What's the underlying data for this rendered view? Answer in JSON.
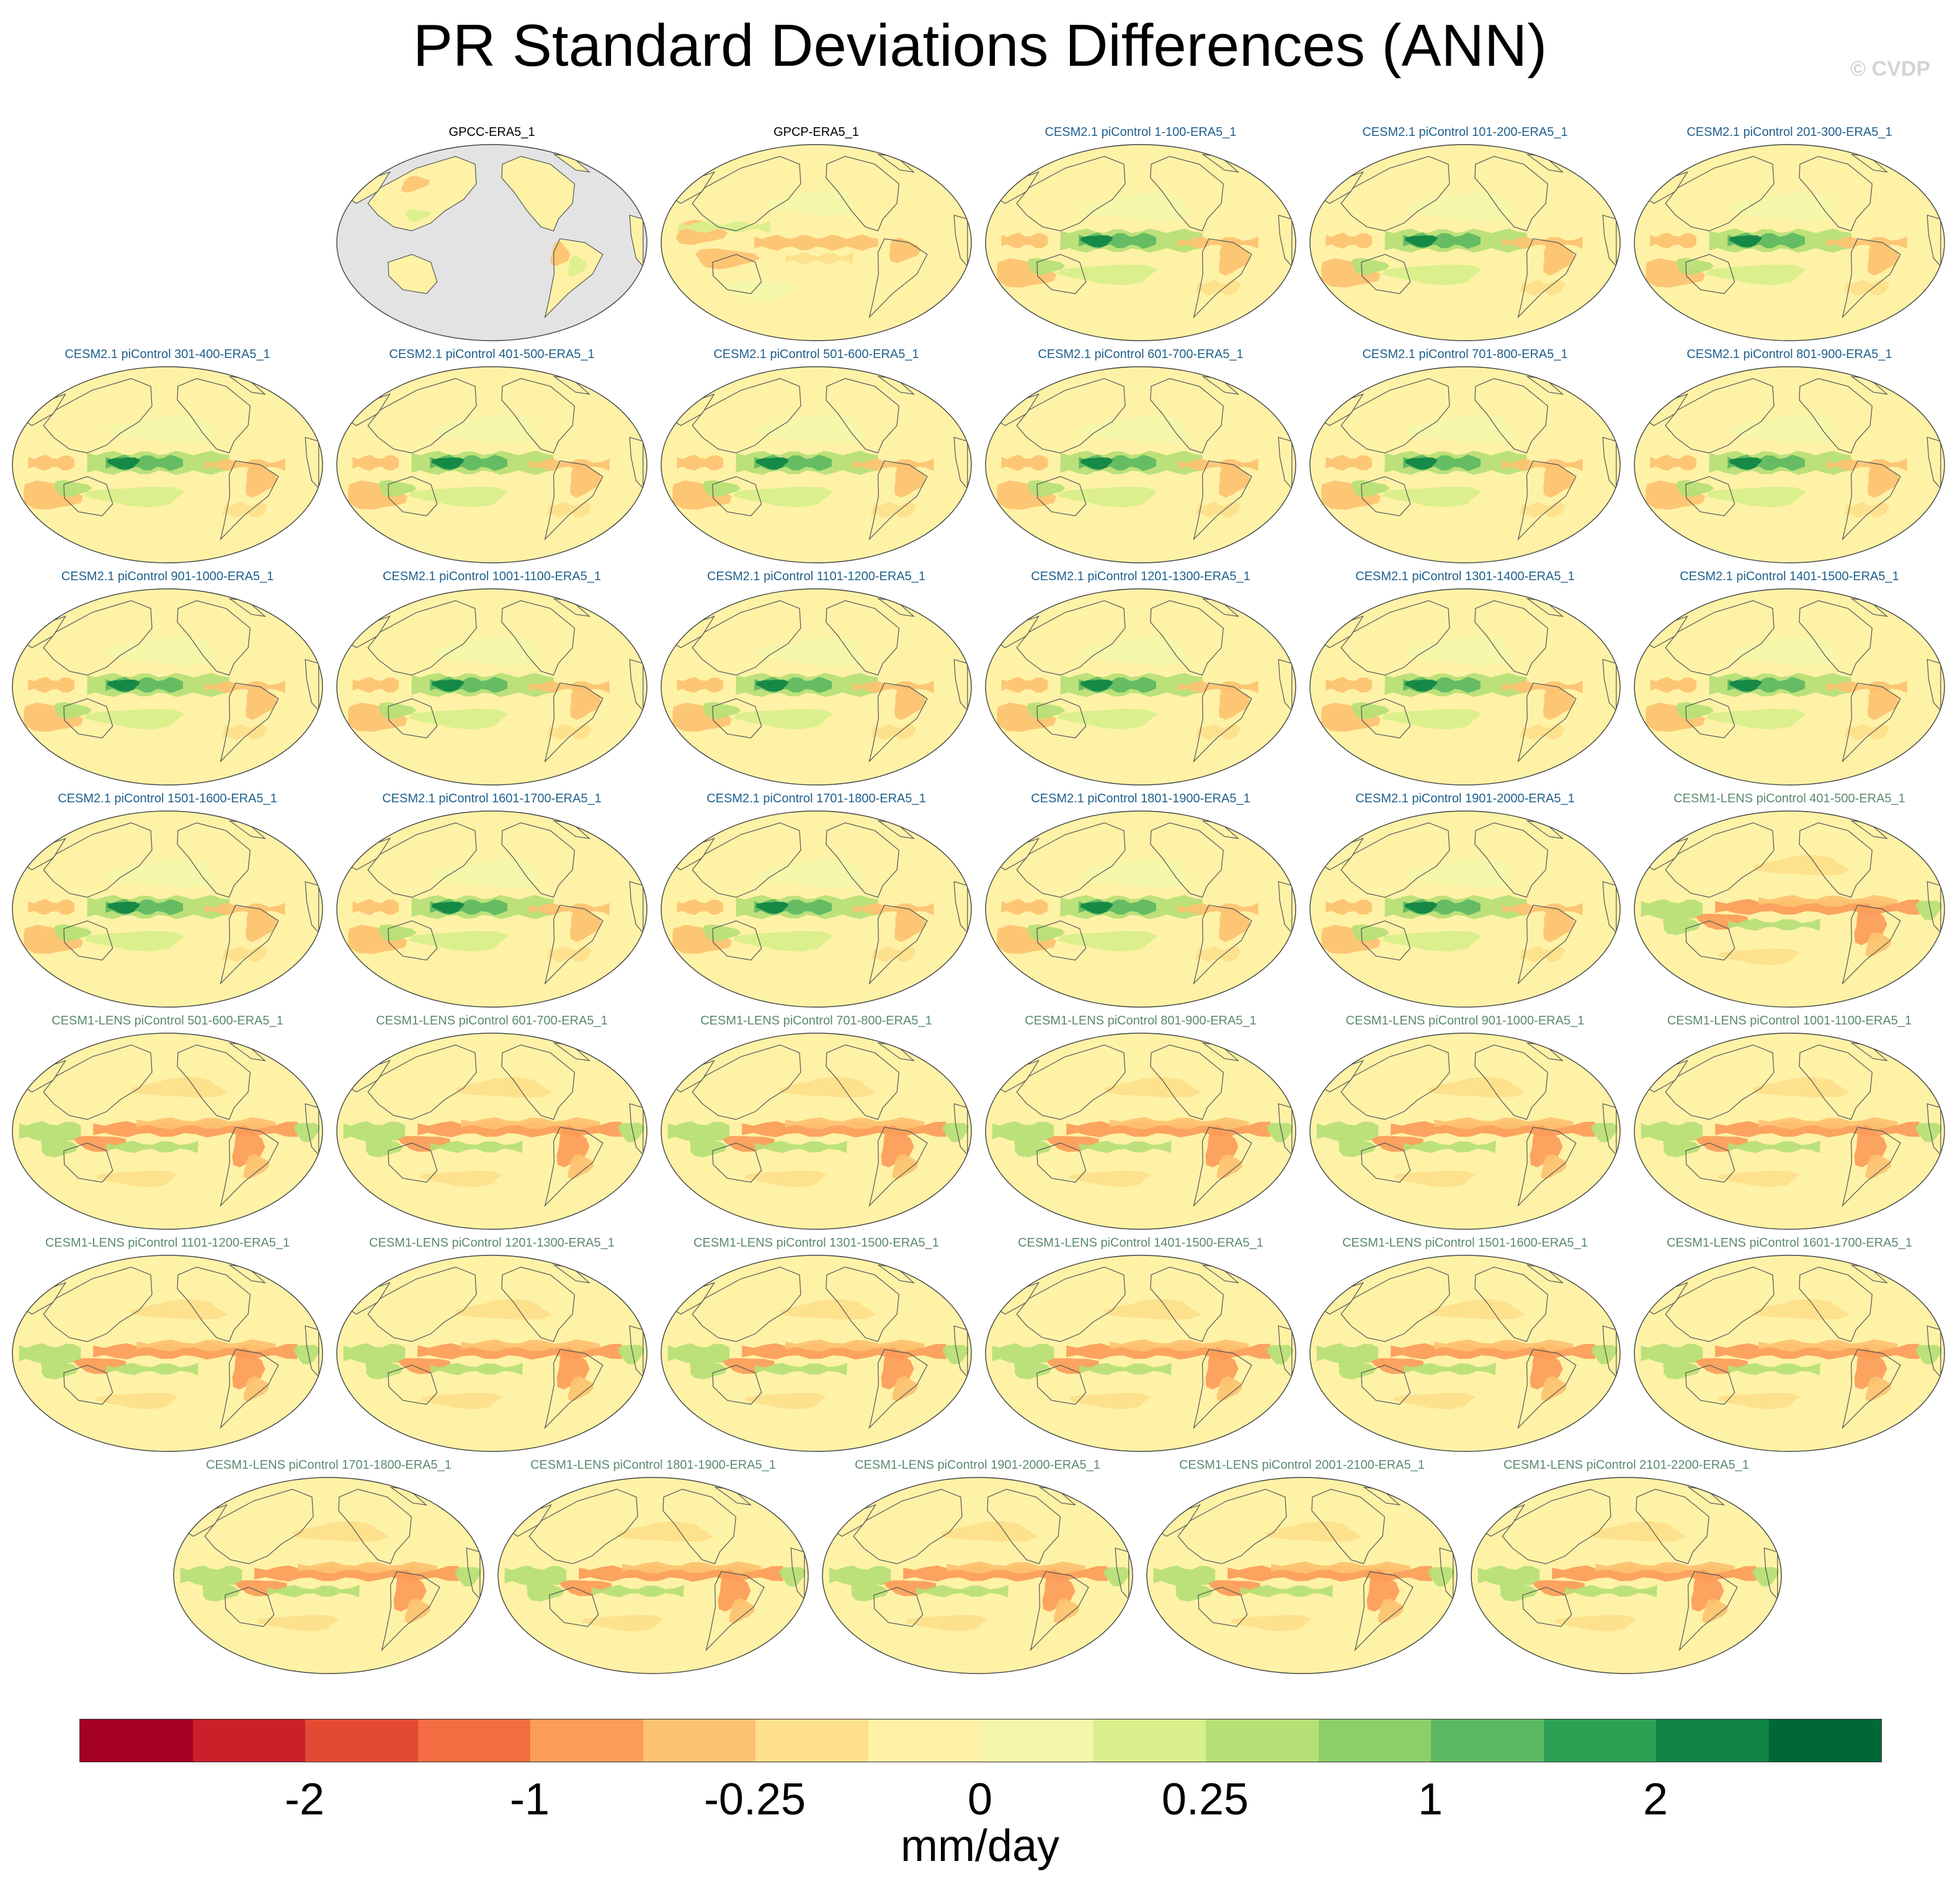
{
  "title": "PR Standard Deviations Differences (ANN)",
  "watermark": "© CVDP",
  "chart_data": {
    "type": "heatmap",
    "title": "PR Standard Deviations Differences (ANN)",
    "colorbar": {
      "units": "mm/day",
      "colors": [
        "#a50026",
        "#cb1f2a",
        "#e34a33",
        "#f46d43",
        "#fb9c59",
        "#fdc271",
        "#fee08b",
        "#fef2a7",
        "#f4f7ab",
        "#d9ef8b",
        "#b6e076",
        "#8ccf68",
        "#5db961",
        "#2ba154",
        "#0f8444",
        "#006837"
      ],
      "tick_labels": [
        "-2",
        "-1",
        "-0.25",
        "0",
        "0.25",
        "1",
        "2"
      ]
    },
    "panels": [
      {
        "label": "GPCC-ERA5_1",
        "group": "obs",
        "pattern": "land"
      },
      {
        "label": "GPCP-ERA5_1",
        "group": "obs",
        "pattern": "gpcp"
      },
      {
        "label": "CESM2.1 piControl 1-100-ERA5_1",
        "group": "cesm2",
        "pattern": "cesm2"
      },
      {
        "label": "CESM2.1 piControl 101-200-ERA5_1",
        "group": "cesm2",
        "pattern": "cesm2"
      },
      {
        "label": "CESM2.1 piControl 201-300-ERA5_1",
        "group": "cesm2",
        "pattern": "cesm2"
      },
      {
        "label": "CESM2.1 piControl 301-400-ERA5_1",
        "group": "cesm2",
        "pattern": "cesm2"
      },
      {
        "label": "CESM2.1 piControl 401-500-ERA5_1",
        "group": "cesm2",
        "pattern": "cesm2"
      },
      {
        "label": "CESM2.1 piControl 501-600-ERA5_1",
        "group": "cesm2",
        "pattern": "cesm2"
      },
      {
        "label": "CESM2.1 piControl 601-700-ERA5_1",
        "group": "cesm2",
        "pattern": "cesm2"
      },
      {
        "label": "CESM2.1 piControl 701-800-ERA5_1",
        "group": "cesm2",
        "pattern": "cesm2"
      },
      {
        "label": "CESM2.1 piControl 801-900-ERA5_1",
        "group": "cesm2",
        "pattern": "cesm2"
      },
      {
        "label": "CESM2.1 piControl 901-1000-ERA5_1",
        "group": "cesm2",
        "pattern": "cesm2"
      },
      {
        "label": "CESM2.1 piControl 1001-1100-ERA5_1",
        "group": "cesm2",
        "pattern": "cesm2"
      },
      {
        "label": "CESM2.1 piControl 1101-1200-ERA5_1",
        "group": "cesm2",
        "pattern": "cesm2"
      },
      {
        "label": "CESM2.1 piControl 1201-1300-ERA5_1",
        "group": "cesm2",
        "pattern": "cesm2"
      },
      {
        "label": "CESM2.1 piControl 1301-1400-ERA5_1",
        "group": "cesm2",
        "pattern": "cesm2"
      },
      {
        "label": "CESM2.1 piControl 1401-1500-ERA5_1",
        "group": "cesm2",
        "pattern": "cesm2"
      },
      {
        "label": "CESM2.1 piControl 1501-1600-ERA5_1",
        "group": "cesm2",
        "pattern": "cesm2"
      },
      {
        "label": "CESM2.1 piControl 1601-1700-ERA5_1",
        "group": "cesm2",
        "pattern": "cesm2"
      },
      {
        "label": "CESM2.1 piControl 1701-1800-ERA5_1",
        "group": "cesm2",
        "pattern": "cesm2"
      },
      {
        "label": "CESM2.1 piControl 1801-1900-ERA5_1",
        "group": "cesm2",
        "pattern": "cesm2"
      },
      {
        "label": "CESM2.1 piControl 1901-2000-ERA5_1",
        "group": "cesm2",
        "pattern": "cesm2"
      },
      {
        "label": "CESM1-LENS piControl 401-500-ERA5_1",
        "group": "cesm1",
        "pattern": "cesm1"
      },
      {
        "label": "CESM1-LENS piControl 501-600-ERA5_1",
        "group": "cesm1",
        "pattern": "cesm1"
      },
      {
        "label": "CESM1-LENS piControl 601-700-ERA5_1",
        "group": "cesm1",
        "pattern": "cesm1"
      },
      {
        "label": "CESM1-LENS piControl 701-800-ERA5_1",
        "group": "cesm1",
        "pattern": "cesm1"
      },
      {
        "label": "CESM1-LENS piControl 801-900-ERA5_1",
        "group": "cesm1",
        "pattern": "cesm1"
      },
      {
        "label": "CESM1-LENS piControl 901-1000-ERA5_1",
        "group": "cesm1",
        "pattern": "cesm1"
      },
      {
        "label": "CESM1-LENS piControl 1001-1100-ERA5_1",
        "group": "cesm1",
        "pattern": "cesm1"
      },
      {
        "label": "CESM1-LENS piControl 1101-1200-ERA5_1",
        "group": "cesm1",
        "pattern": "cesm1"
      },
      {
        "label": "CESM1-LENS piControl 1201-1300-ERA5_1",
        "group": "cesm1",
        "pattern": "cesm1"
      },
      {
        "label": "CESM1-LENS piControl 1301-1500-ERA5_1",
        "group": "cesm1",
        "pattern": "cesm1"
      },
      {
        "label": "CESM1-LENS piControl 1401-1500-ERA5_1",
        "group": "cesm1",
        "pattern": "cesm1"
      },
      {
        "label": "CESM1-LENS piControl 1501-1600-ERA5_1",
        "group": "cesm1",
        "pattern": "cesm1"
      },
      {
        "label": "CESM1-LENS piControl 1601-1700-ERA5_1",
        "group": "cesm1",
        "pattern": "cesm1"
      },
      {
        "label": "CESM1-LENS piControl 1701-1800-ERA5_1",
        "group": "cesm1",
        "pattern": "cesm1"
      },
      {
        "label": "CESM1-LENS piControl 1801-1900-ERA5_1",
        "group": "cesm1",
        "pattern": "cesm1"
      },
      {
        "label": "CESM1-LENS piControl 1901-2000-ERA5_1",
        "group": "cesm1",
        "pattern": "cesm1"
      },
      {
        "label": "CESM1-LENS piControl 2001-2100-ERA5_1",
        "group": "cesm1",
        "pattern": "cesm1"
      },
      {
        "label": "CESM1-LENS piControl 2101-2200-ERA5_1",
        "group": "cesm1",
        "pattern": "cesm1"
      }
    ],
    "label_colors": {
      "obs": "#000000",
      "cesm2": "#1f5f8b",
      "cesm1": "#5b8a6e"
    },
    "ocean_missing_color": "#e3e3e3"
  }
}
